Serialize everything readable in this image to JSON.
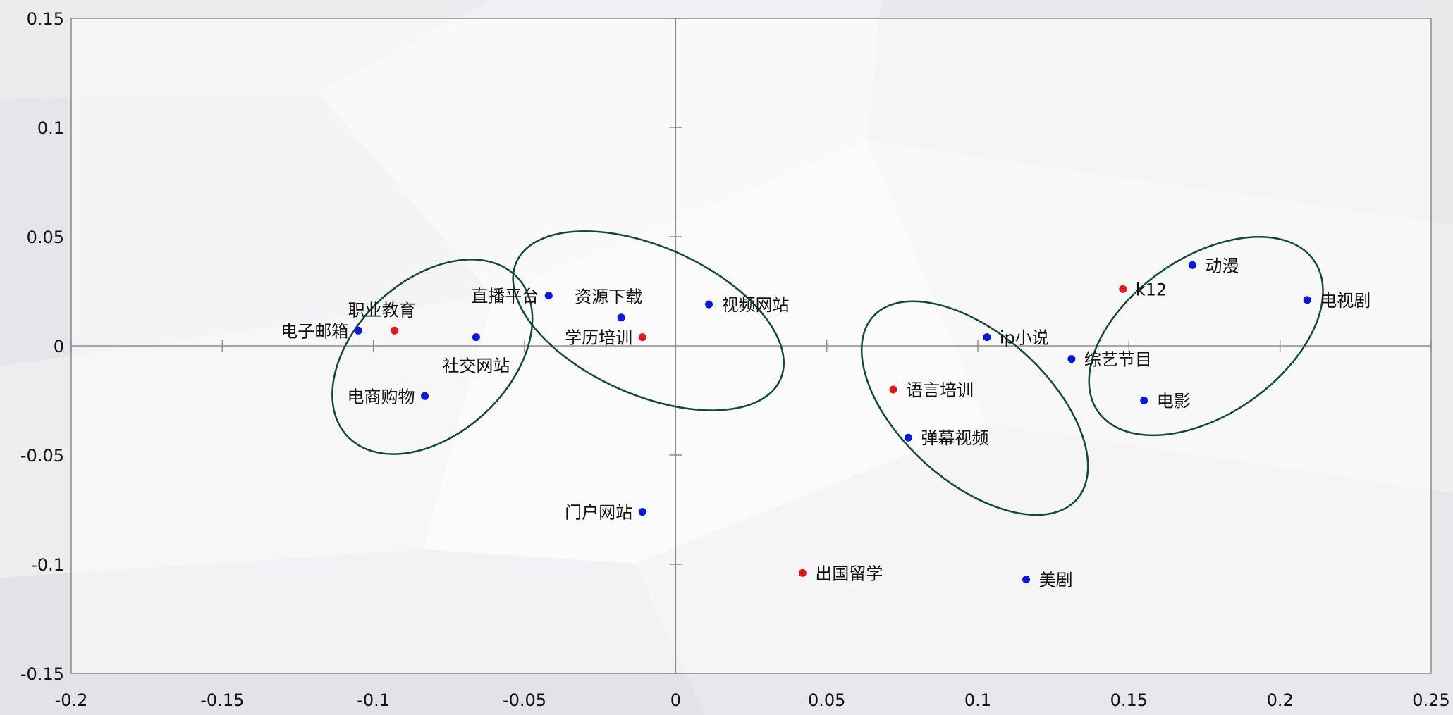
{
  "chart_data": {
    "type": "scatter",
    "title": "",
    "xlabel": "",
    "ylabel": "",
    "xlim": [
      -0.2,
      0.25
    ],
    "ylim": [
      -0.15,
      0.15
    ],
    "grid": false,
    "x_ticks": [
      {
        "value": -0.2,
        "label": "-0.2"
      },
      {
        "value": -0.15,
        "label": "-0.15"
      },
      {
        "value": -0.1,
        "label": "-0.1"
      },
      {
        "value": -0.05,
        "label": "-0.05"
      },
      {
        "value": 0,
        "label": "0"
      },
      {
        "value": 0.05,
        "label": "0.05"
      },
      {
        "value": 0.1,
        "label": "0.1"
      },
      {
        "value": 0.15,
        "label": "0.15"
      },
      {
        "value": 0.2,
        "label": "0.2"
      },
      {
        "value": 0.25,
        "label": "0.25"
      }
    ],
    "y_ticks": [
      {
        "value": 0.15,
        "label": "0.15"
      },
      {
        "value": 0.1,
        "label": "0.1"
      },
      {
        "value": 0.05,
        "label": "0.05"
      },
      {
        "value": 0,
        "label": "0"
      },
      {
        "value": -0.05,
        "label": "-0.05"
      },
      {
        "value": -0.1,
        "label": "-0.1"
      },
      {
        "value": -0.15,
        "label": "-0.15"
      }
    ],
    "colors": {
      "blue": "#0a17e0",
      "red": "#e8141c",
      "ellipse": "#0f4a3c",
      "axis": "#8c8c8c"
    },
    "points": [
      {
        "label": "电子邮箱",
        "x": -0.105,
        "y": 0.007,
        "color": "blue",
        "label_pos": "left"
      },
      {
        "label": "职业教育",
        "x": -0.093,
        "y": 0.007,
        "color": "red",
        "label_pos": "above"
      },
      {
        "label": "社交网站",
        "x": -0.066,
        "y": 0.004,
        "color": "blue",
        "label_pos": "below"
      },
      {
        "label": "电商购物",
        "x": -0.083,
        "y": -0.023,
        "color": "blue",
        "label_pos": "left"
      },
      {
        "label": "直播平台",
        "x": -0.042,
        "y": 0.023,
        "color": "blue",
        "label_pos": "left"
      },
      {
        "label": "资源下载",
        "x": -0.018,
        "y": 0.013,
        "color": "blue",
        "label_pos": "above"
      },
      {
        "label": "学历培训",
        "x": -0.011,
        "y": 0.004,
        "color": "red",
        "label_pos": "left"
      },
      {
        "label": "视频网站",
        "x": 0.011,
        "y": 0.019,
        "color": "blue",
        "label_pos": "right"
      },
      {
        "label": "门户网站",
        "x": -0.011,
        "y": -0.076,
        "color": "blue",
        "label_pos": "left"
      },
      {
        "label": "出国留学",
        "x": 0.042,
        "y": -0.104,
        "color": "red",
        "label_pos": "right"
      },
      {
        "label": "美剧",
        "x": 0.116,
        "y": -0.107,
        "color": "blue",
        "label_pos": "right"
      },
      {
        "label": "语言培训",
        "x": 0.072,
        "y": -0.02,
        "color": "red",
        "label_pos": "right"
      },
      {
        "label": "弹幕视频",
        "x": 0.077,
        "y": -0.042,
        "color": "blue",
        "label_pos": "right"
      },
      {
        "label": "ip小说",
        "x": 0.103,
        "y": 0.004,
        "color": "blue",
        "label_pos": "right"
      },
      {
        "label": "综艺节目",
        "x": 0.131,
        "y": -0.006,
        "color": "blue",
        "label_pos": "right"
      },
      {
        "label": "k12",
        "x": 0.148,
        "y": 0.026,
        "color": "red",
        "label_pos": "right"
      },
      {
        "label": "动漫",
        "x": 0.171,
        "y": 0.037,
        "color": "blue",
        "label_pos": "right"
      },
      {
        "label": "电视剧",
        "x": 0.209,
        "y": 0.021,
        "color": "blue",
        "label_pos": "right"
      },
      {
        "label": "电影",
        "x": 0.155,
        "y": -0.025,
        "color": "blue",
        "label_pos": "right"
      }
    ],
    "ellipses": [
      {
        "cx": -0.0805,
        "cy": -0.005,
        "rx": 0.0385,
        "ry": 0.0255,
        "angle_deg": 43
      },
      {
        "cx": -0.009,
        "cy": 0.0115,
        "rx": 0.0478,
        "ry": 0.0245,
        "angle_deg": -24
      },
      {
        "cx": 0.099,
        "cy": -0.0285,
        "rx": 0.0453,
        "ry": 0.0245,
        "angle_deg": -42
      },
      {
        "cx": 0.1755,
        "cy": 0.0045,
        "rx": 0.0436,
        "ry": 0.026,
        "angle_deg": 35
      }
    ]
  }
}
